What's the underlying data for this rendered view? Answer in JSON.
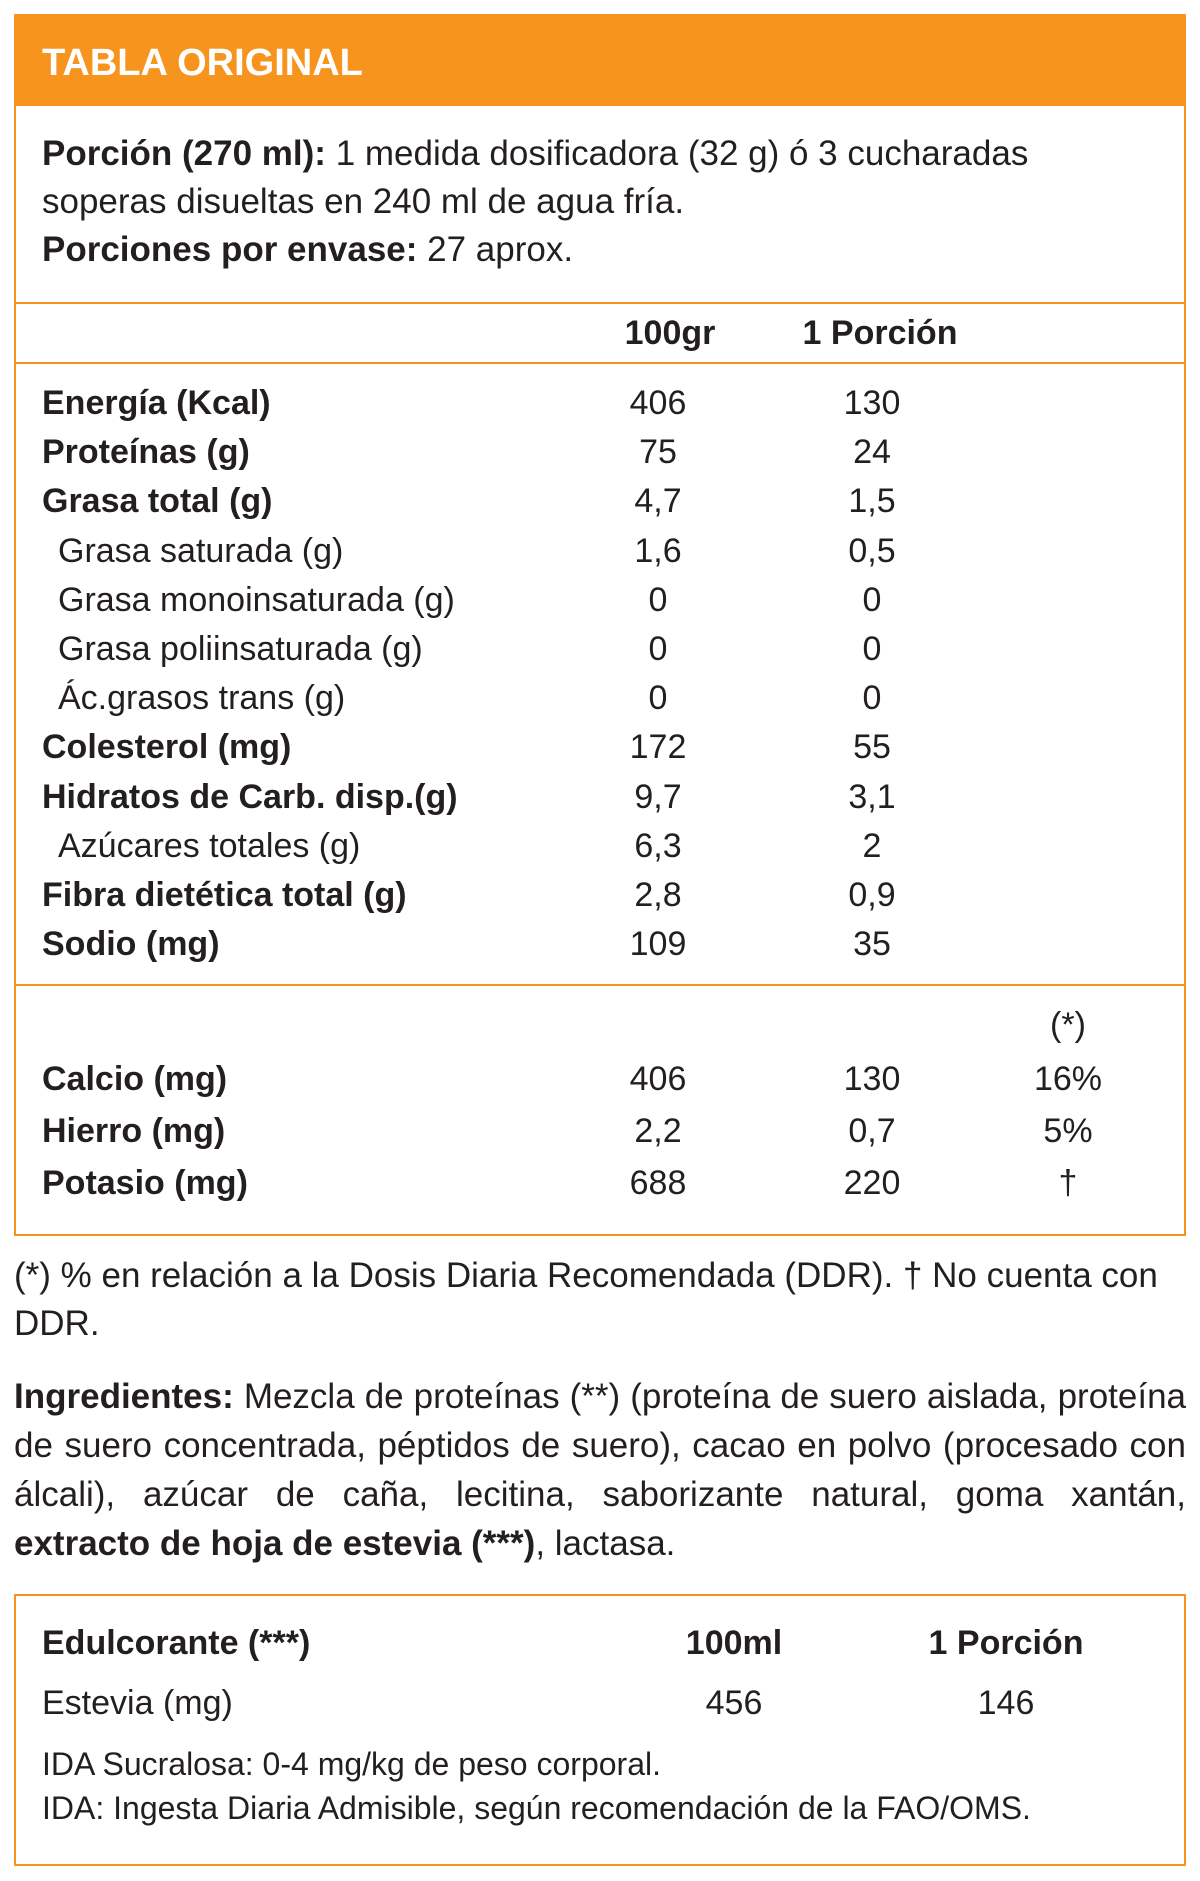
{
  "header": {
    "title": "TABLA ORIGINAL"
  },
  "serving": {
    "portion_label": "Porción (270 ml):",
    "portion_text": "1 medida dosificadora (32 g) ó 3 cucharadas soperas disueltas en 240 ml de agua fría.",
    "count_label": "Porciones por envase:",
    "count_text": "27 aprox."
  },
  "table": {
    "columns": [
      "100gr",
      "1 Porción"
    ],
    "nutrients": [
      {
        "name": "Energía (Kcal)",
        "per100": "406",
        "portion": "130"
      },
      {
        "name": "Proteínas (g)",
        "per100": "75",
        "portion": "24"
      },
      {
        "name": "Grasa total (g)",
        "per100": "4,7",
        "portion": "1,5",
        "sub": [
          {
            "name": "Grasa saturada (g)",
            "per100": "1,6",
            "portion": "0,5"
          },
          {
            "name": "Grasa monoinsaturada (g)",
            "per100": "0",
            "portion": "0"
          },
          {
            "name": "Grasa poliinsaturada (g)",
            "per100": "0",
            "portion": "0"
          },
          {
            "name": "Ác.grasos trans (g)",
            "per100": "0",
            "portion": "0"
          }
        ]
      },
      {
        "name": "Colesterol (mg)",
        "per100": "172",
        "portion": "55"
      },
      {
        "name": "Hidratos de Carb. disp.(g)",
        "per100": "9,7",
        "portion": "3,1",
        "sub": [
          {
            "name": "Azúcares totales (g)",
            "per100": "6,3",
            "portion": "2"
          }
        ]
      },
      {
        "name": "Fibra dietética total (g)",
        "per100": "2,8",
        "portion": "0,9"
      },
      {
        "name": "Sodio (mg)",
        "per100": "109",
        "portion": "35"
      }
    ],
    "ddr_header": "(*)",
    "minerals": [
      {
        "name": "Calcio (mg)",
        "per100": "406",
        "portion": "130",
        "ddr": "16%"
      },
      {
        "name": "Hierro (mg)",
        "per100": "2,2",
        "portion": "0,7",
        "ddr": "5%"
      },
      {
        "name": "Potasio (mg)",
        "per100": "688",
        "portion": "220",
        "ddr": "†"
      }
    ]
  },
  "footnote": "(*) % en relación a la Dosis Diaria Recomendada (DDR). † No cuenta con DDR.",
  "ingredients": {
    "label": "Ingredientes:",
    "text": "Mezcla de proteínas (**) (proteína de suero aislada, proteína de suero concentrada, péptidos de suero), cacao en polvo (procesado con álcali), azúcar de caña, lecitina, saborizante natural, goma xantán,",
    "bold": "extracto de hoja de estevia (***)",
    "end": ", lactasa."
  },
  "sweetener": {
    "headers": [
      "Edulcorante (***)",
      "100ml",
      "1 Porción"
    ],
    "row": [
      "Estevia (mg)",
      "456",
      "146"
    ],
    "notes": [
      "IDA Sucralosa: 0-4 mg/kg de peso corporal.",
      "IDA: Ingesta Diaria Admisible, según recomendación de la FAO/OMS."
    ]
  }
}
